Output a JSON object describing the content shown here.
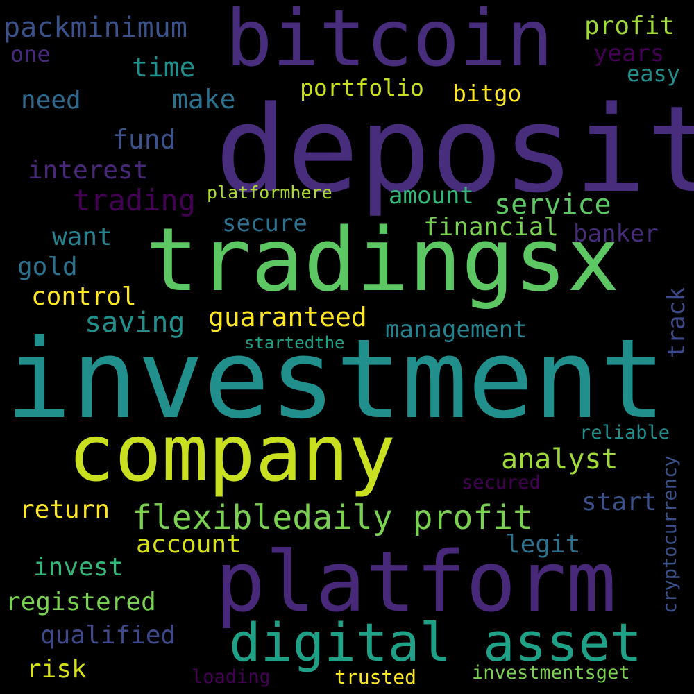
{
  "colors": {
    "background": "#000000",
    "dark_purple": "#440154",
    "indigo": "#472d7b",
    "slate_blue": "#3b528b",
    "steel_blue": "#2c728e",
    "teal": "#21908d",
    "teal_green": "#27ad81",
    "green": "#5dc863",
    "lime": "#aadc32",
    "yellow": "#fde725"
  },
  "words": [
    {
      "id": "w-investment",
      "text": "investment",
      "color": "#21908d",
      "vertical": false
    },
    {
      "id": "w-deposit",
      "text": "deposit",
      "color": "#472d7b",
      "vertical": false
    },
    {
      "id": "w-bitcoin",
      "text": "bitcoin",
      "color": "#472d7b",
      "vertical": false
    },
    {
      "id": "w-tradingsx",
      "text": "tradingsx",
      "color": "#5dc863",
      "vertical": false
    },
    {
      "id": "w-company",
      "text": "company",
      "color": "#c8e020",
      "vertical": false
    },
    {
      "id": "w-platform",
      "text": "platform",
      "color": "#482878",
      "vertical": false
    },
    {
      "id": "w-digital-asset",
      "text": "digital asset",
      "color": "#1fa187",
      "vertical": false
    },
    {
      "id": "w-flexible",
      "text": "flexibledaily profit",
      "color": "#7ad151",
      "vertical": false
    },
    {
      "id": "w-packminimum",
      "text": "packminimum",
      "color": "#3b528b",
      "vertical": false
    },
    {
      "id": "w-trading",
      "text": "trading",
      "color": "#440154",
      "vertical": false
    },
    {
      "id": "w-service",
      "text": "service",
      "color": "#5dc863",
      "vertical": false
    },
    {
      "id": "w-analyst",
      "text": "analyst",
      "color": "#a0da39",
      "vertical": false
    },
    {
      "id": "w-profit-top",
      "text": "profit",
      "color": "#a0da39",
      "vertical": false
    },
    {
      "id": "w-time",
      "text": "time",
      "color": "#21908d",
      "vertical": false
    },
    {
      "id": "w-make",
      "text": "make",
      "color": "#2c728e",
      "vertical": false
    },
    {
      "id": "w-fund",
      "text": "fund",
      "color": "#3b528b",
      "vertical": false
    },
    {
      "id": "w-portfolio",
      "text": "portfolio",
      "color": "#c8e020",
      "vertical": false
    },
    {
      "id": "w-bitgo",
      "text": "bitgo",
      "color": "#fde725",
      "vertical": false
    },
    {
      "id": "w-interest",
      "text": "interest",
      "color": "#482878",
      "vertical": false
    },
    {
      "id": "w-one",
      "text": "one",
      "color": "#482878",
      "vertical": false
    },
    {
      "id": "w-need",
      "text": "need",
      "color": "#31688e",
      "vertical": false
    },
    {
      "id": "w-years",
      "text": "years",
      "color": "#440154",
      "vertical": false
    },
    {
      "id": "w-easy",
      "text": "easy",
      "color": "#21908d",
      "vertical": false
    },
    {
      "id": "w-platformhere",
      "text": "platformhere",
      "color": "#aadc32",
      "vertical": false
    },
    {
      "id": "w-amount",
      "text": "amount",
      "color": "#35b779",
      "vertical": false
    },
    {
      "id": "w-secure",
      "text": "secure",
      "color": "#2c728e",
      "vertical": false
    },
    {
      "id": "w-financial",
      "text": "financial",
      "color": "#7ad151",
      "vertical": false
    },
    {
      "id": "w-banker",
      "text": "banker",
      "color": "#472d7b",
      "vertical": false
    },
    {
      "id": "w-want",
      "text": "want",
      "color": "#26828e",
      "vertical": false
    },
    {
      "id": "w-gold",
      "text": "gold",
      "color": "#2c728e",
      "vertical": false
    },
    {
      "id": "w-control",
      "text": "control",
      "color": "#fde725",
      "vertical": false
    },
    {
      "id": "w-saving",
      "text": "saving",
      "color": "#21908d",
      "vertical": false
    },
    {
      "id": "w-guaranteed",
      "text": "guaranteed",
      "color": "#fde725",
      "vertical": false
    },
    {
      "id": "w-management",
      "text": "management",
      "color": "#26828e",
      "vertical": false
    },
    {
      "id": "w-startedthe",
      "text": "startedthe",
      "color": "#1fa187",
      "vertical": false
    },
    {
      "id": "w-reliable",
      "text": "reliable",
      "color": "#21908d",
      "vertical": false
    },
    {
      "id": "w-secured",
      "text": "secured",
      "color": "#440154",
      "vertical": false
    },
    {
      "id": "w-start",
      "text": "start",
      "color": "#3b528b",
      "vertical": false
    },
    {
      "id": "w-return",
      "text": "return",
      "color": "#fde725",
      "vertical": false
    },
    {
      "id": "w-account",
      "text": "account",
      "color": "#d8e219",
      "vertical": false
    },
    {
      "id": "w-legit",
      "text": "legit",
      "color": "#2c728e",
      "vertical": false
    },
    {
      "id": "w-invest",
      "text": "invest",
      "color": "#35b779",
      "vertical": false
    },
    {
      "id": "w-registered",
      "text": "registered",
      "color": "#7ad151",
      "vertical": false
    },
    {
      "id": "w-qualified",
      "text": "qualified",
      "color": "#3e4989",
      "vertical": false
    },
    {
      "id": "w-risk",
      "text": "risk",
      "color": "#d8e219",
      "vertical": false
    },
    {
      "id": "w-loading",
      "text": "loading",
      "color": "#440154",
      "vertical": false
    },
    {
      "id": "w-trusted",
      "text": "trusted",
      "color": "#fde725",
      "vertical": false
    },
    {
      "id": "w-investmentsget",
      "text": "investmentsget",
      "color": "#7ad151",
      "vertical": false
    },
    {
      "id": "w-track",
      "text": "track",
      "color": "#3e4989",
      "vertical": true
    },
    {
      "id": "w-cryptocurrency",
      "text": "cryptocurrency",
      "color": "#3b528b",
      "vertical": true
    }
  ]
}
